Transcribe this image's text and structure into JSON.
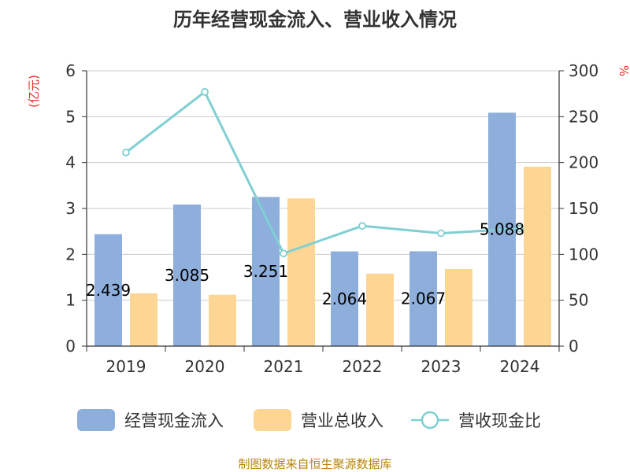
{
  "title": "历年经营现金流入、营业收入情况",
  "units": {
    "left": "(亿元)",
    "right": "%"
  },
  "source": "制图数据来自恒生聚源数据库",
  "colors": {
    "inflow": "#8eaedb",
    "revenue": "#fdd694",
    "ratio": "#7fcfd3",
    "axis": "#333333",
    "grid": "#cccccc"
  },
  "legend": [
    {
      "label": "经营现金流入",
      "type": "bar",
      "color": "#8eaedb"
    },
    {
      "label": "营业总收入",
      "type": "bar",
      "color": "#fdd694"
    },
    {
      "label": "营收现金比",
      "type": "line",
      "color": "#7fcfd3"
    }
  ],
  "chart_data": {
    "type": "bar",
    "title": "历年经营现金流入、营业收入情况",
    "categories": [
      "2019",
      "2020",
      "2021",
      "2022",
      "2023",
      "2024"
    ],
    "series": [
      {
        "name": "经营现金流入",
        "type": "bar",
        "axis": "left",
        "values": [
          2.439,
          3.085,
          3.251,
          2.064,
          2.067,
          5.088
        ],
        "labels": [
          "2.439",
          "3.085",
          "3.251",
          "2.064",
          "2.067",
          "5.088"
        ]
      },
      {
        "name": "营业总收入",
        "type": "bar",
        "axis": "left",
        "values": [
          1.15,
          1.12,
          3.22,
          1.58,
          1.68,
          3.91
        ]
      },
      {
        "name": "营收现金比",
        "type": "line",
        "axis": "right",
        "values": [
          211,
          277,
          101,
          131,
          123,
          128
        ]
      }
    ],
    "y_left": {
      "range": [
        0,
        6
      ],
      "ticks": [
        "0",
        "1",
        "2",
        "3",
        "4",
        "5",
        "6"
      ],
      "unit": "(亿元)"
    },
    "y_right": {
      "range": [
        0,
        300
      ],
      "ticks": [
        "0",
        "50",
        "100",
        "150",
        "200",
        "250",
        "300"
      ],
      "unit": "%"
    },
    "grid": true,
    "legend_position": "bottom"
  }
}
